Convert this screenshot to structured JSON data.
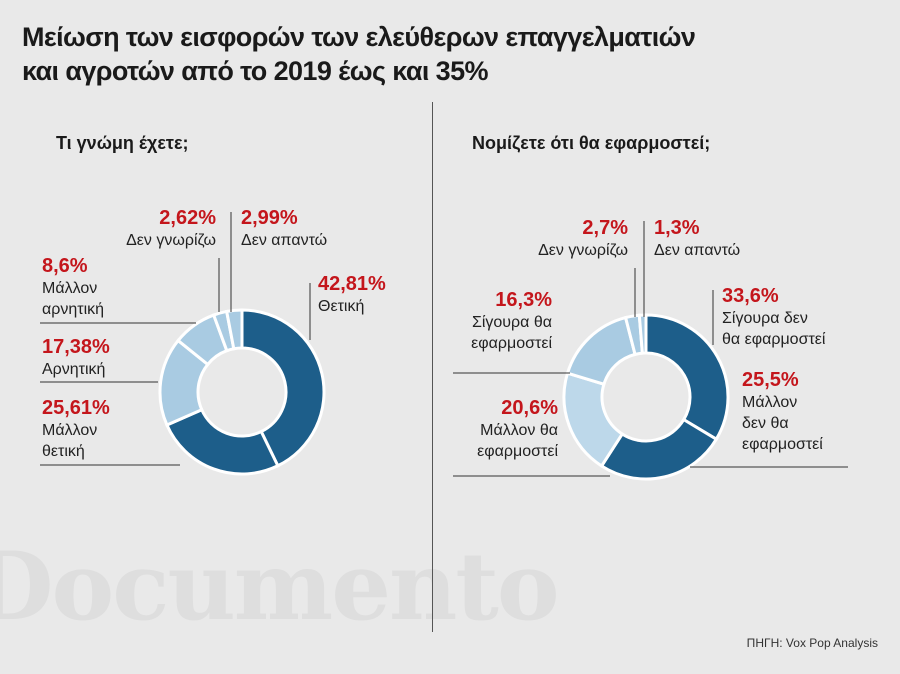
{
  "title": {
    "line1": "Μείωση των εισφορών των ελεύθερων επαγγελματιών",
    "line2": "και αγροτών από το 2019 έως και 35%"
  },
  "watermark": "Documento",
  "source": "ΠΗΓΗ: Vox Pop Analysis",
  "colors": {
    "label_red": "#c4161c",
    "dark_blue": "#1d5e8a",
    "light_blue": "#a9cbe2",
    "lighter_blue": "#bdd8ea"
  },
  "chart_data": [
    {
      "type": "pie",
      "title": "Τι γνώμη έχετε;",
      "slices": [
        {
          "value": "42,81%",
          "name": "Θετική",
          "num": 42.81,
          "color": "#1d5e8a"
        },
        {
          "value": "25,61%",
          "name": "Μάλλον θετική",
          "num": 25.61,
          "color": "#1d5e8a"
        },
        {
          "value": "17,38%",
          "name": "Αρνητική",
          "num": 17.38,
          "color": "#a9cbe2"
        },
        {
          "value": "8,6%",
          "name": "Μάλλον αρνητική",
          "num": 8.6,
          "color": "#a9cbe2"
        },
        {
          "value": "2,62%",
          "name": "Δεν γνωρίζω",
          "num": 2.62,
          "color": "#a9cbe2"
        },
        {
          "value": "2,99%",
          "name": "Δεν απαντώ",
          "num": 2.99,
          "color": "#a9cbe2"
        }
      ],
      "labels": {
        "thetiki": "Θετική",
        "mallon_thetiki_1": "Μάλλον",
        "mallon_thetiki_2": "θετική",
        "arnitiki": "Αρνητική",
        "mallon_arnitiki_1": "Μάλλον",
        "mallon_arnitiki_2": "αρνητική",
        "den_gnorizo": "Δεν γνωρίζω",
        "den_apanto": "Δεν απαντώ"
      }
    },
    {
      "type": "pie",
      "title": "Νομίζετε ότι θα εφαρμοστεί;",
      "slices": [
        {
          "value": "33,6%",
          "name": "Σίγουρα δεν θα εφαρμοστεί",
          "num": 33.6,
          "color": "#1d5e8a"
        },
        {
          "value": "25,5%",
          "name": "Μάλλον δεν θα εφαρμοστεί",
          "num": 25.5,
          "color": "#1d5e8a"
        },
        {
          "value": "20,6%",
          "name": "Μάλλον θα εφαρμοστεί",
          "num": 20.6,
          "color": "#bdd8ea"
        },
        {
          "value": "16,3%",
          "name": "Σίγουρα θα εφαρμοστεί",
          "num": 16.3,
          "color": "#a9cbe2"
        },
        {
          "value": "2,7%",
          "name": "Δεν γνωρίζω",
          "num": 2.7,
          "color": "#a9cbe2"
        },
        {
          "value": "1,3%",
          "name": "Δεν απαντώ",
          "num": 1.3,
          "color": "#a9cbe2"
        }
      ],
      "labels": {
        "sigoura_den_1": "Σίγουρα δεν",
        "sigoura_den_2": "θα εφαρμοστεί",
        "mallon_den_1": "Μάλλον",
        "mallon_den_2": "δεν θα",
        "mallon_den_3": "εφαρμοστεί",
        "mallon_tha_1": "Μάλλον θα",
        "mallon_tha_2": "εφαρμοστεί",
        "sigoura_tha_1": "Σίγουρα θα",
        "sigoura_tha_2": "εφαρμοστεί",
        "den_gnorizo": "Δεν γνωρίζω",
        "den_apanto": "Δεν απαντώ"
      }
    }
  ]
}
